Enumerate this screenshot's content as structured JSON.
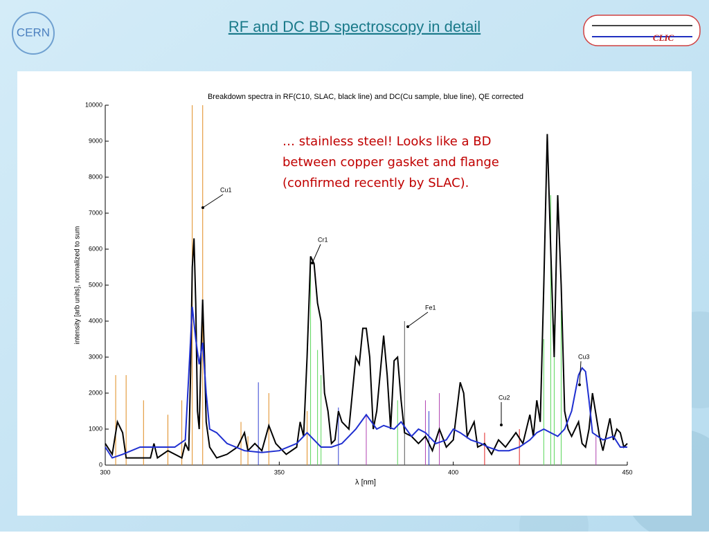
{
  "slide_title": "RF and DC BD spectroscopy in detail",
  "logos": [
    "CERN",
    "CLIC"
  ],
  "note": "… stainless steel! Looks like a BD between copper gasket and flange (confirmed recently by SLAC).",
  "chart_data": {
    "type": "line",
    "title": "Breakdown spectra in RF(C10, SLAC, black line) and DC(Cu sample, blue line), QE corrected",
    "x_label": "λ [nm]",
    "y_label": "intensity [arb units], normalized to sum",
    "xlim": [
      300,
      450
    ],
    "xticks": [
      300,
      350,
      400,
      450
    ],
    "ylim": [
      0,
      10000
    ],
    "yticks": [
      0,
      1000,
      2000,
      3000,
      4000,
      5000,
      6000,
      7000,
      8000,
      9000,
      10000
    ],
    "annotations": [
      "Cu1",
      "Cr1",
      "Fe1",
      "Cu2",
      "Cu3"
    ],
    "series": [
      {
        "color": "#000000",
        "x": [
          300,
          302,
          303.5,
          305,
          306,
          310,
          313,
          314,
          315,
          318,
          320,
          322,
          323,
          324,
          324.5,
          325,
          325.5,
          326,
          326.5,
          327,
          327.5,
          328,
          328.5,
          329,
          330,
          332,
          335,
          338,
          340,
          341,
          343,
          345,
          347,
          349,
          352,
          355,
          356,
          357,
          358,
          359,
          360,
          361,
          362,
          363,
          364,
          365,
          366,
          367,
          368,
          370,
          372,
          373,
          374,
          375,
          376,
          377,
          378,
          380,
          381,
          382,
          383,
          384,
          385,
          386,
          388,
          390,
          392,
          394,
          396,
          398,
          400,
          402,
          403,
          404,
          406,
          407,
          409,
          411,
          413,
          415,
          418,
          420,
          422,
          423,
          424,
          425,
          426,
          427,
          428,
          429,
          430,
          431,
          432,
          433,
          434,
          436,
          437,
          438,
          439,
          440,
          441,
          442,
          443,
          445,
          446,
          447,
          448,
          449,
          450
        ],
        "values": [
          600,
          300,
          1200,
          900,
          200,
          200,
          200,
          600,
          200,
          400,
          300,
          200,
          600,
          400,
          2500,
          5500,
          6300,
          4500,
          1500,
          1000,
          3000,
          4600,
          3000,
          1200,
          500,
          200,
          300,
          500,
          900,
          400,
          600,
          400,
          1100,
          600,
          300,
          500,
          1200,
          800,
          3000,
          5800,
          5600,
          4500,
          4000,
          2000,
          1500,
          600,
          700,
          1500,
          1200,
          1000,
          3000,
          2800,
          3800,
          3800,
          3000,
          1000,
          1500,
          3600,
          2500,
          1000,
          2900,
          3000,
          1800,
          900,
          800,
          600,
          800,
          400,
          1000,
          500,
          700,
          2300,
          2000,
          800,
          1200,
          500,
          600,
          300,
          700,
          500,
          900,
          600,
          1400,
          800,
          1800,
          1200,
          5000,
          9200,
          6000,
          3000,
          7500,
          5000,
          1500,
          1000,
          800,
          1200,
          600,
          500,
          1000,
          2000,
          1400,
          800,
          400,
          1300,
          700,
          1000,
          900,
          500,
          600
        ]
      },
      {
        "color": "#1f2fd0",
        "x": [
          300,
          302,
          305,
          310,
          315,
          320,
          323,
          324,
          325,
          326,
          327,
          328,
          329,
          330,
          332,
          335,
          340,
          345,
          350,
          355,
          358,
          360,
          362,
          365,
          368,
          370,
          372,
          375,
          378,
          380,
          383,
          385,
          388,
          390,
          392,
          395,
          398,
          400,
          402,
          405,
          408,
          410,
          413,
          416,
          419,
          422,
          424,
          426,
          428,
          430,
          432,
          434,
          436,
          437,
          438,
          439,
          440,
          443,
          446,
          448,
          450
        ],
        "values": [
          500,
          200,
          300,
          500,
          500,
          500,
          700,
          2500,
          4400,
          3500,
          2800,
          3400,
          2000,
          1000,
          900,
          600,
          400,
          350,
          400,
          600,
          900,
          700,
          500,
          500,
          600,
          800,
          1000,
          1400,
          1000,
          1100,
          1000,
          1200,
          800,
          1000,
          900,
          600,
          700,
          1000,
          900,
          700,
          600,
          500,
          400,
          400,
          500,
          700,
          900,
          1000,
          900,
          800,
          1000,
          1500,
          2500,
          2700,
          2600,
          1800,
          900,
          700,
          800,
          500,
          500
        ]
      }
    ],
    "lines": [
      {
        "color": "#e08a1e",
        "x": [
          303,
          306,
          311,
          318,
          322,
          325,
          328,
          339,
          341,
          347,
          358
        ],
        "values": [
          2500,
          2500,
          1800,
          1400,
          1800,
          10000,
          10000,
          1200,
          800,
          2000,
          1500
        ]
      },
      {
        "color": "#5ad65a",
        "x": [
          359,
          361,
          362,
          384,
          426,
          428,
          429,
          431
        ],
        "values": [
          5600,
          3200,
          2500,
          1800,
          3500,
          7500,
          3900,
          4300
        ]
      },
      {
        "color": "#b040b0",
        "x": [
          375,
          392,
          396,
          441
        ],
        "values": [
          1400,
          1800,
          2000,
          800
        ]
      },
      {
        "color": "#555555",
        "x": [
          386
        ],
        "values": [
          4000
        ]
      },
      {
        "color": "#e02020",
        "x": [
          409,
          419
        ],
        "values": [
          900,
          1000
        ]
      },
      {
        "color": "#3040d0",
        "x": [
          344,
          367,
          393
        ],
        "values": [
          2300,
          1600,
          1500
        ]
      }
    ]
  }
}
